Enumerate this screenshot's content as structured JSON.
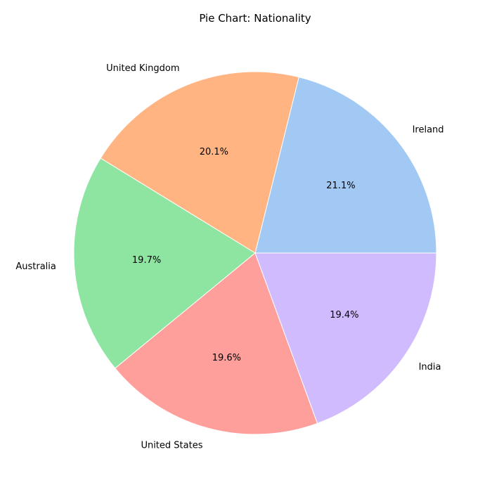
{
  "chart_data": {
    "type": "pie",
    "title": "Pie Chart: Nationality",
    "categories": [
      "Ireland",
      "United Kingdom",
      "Australia",
      "United States",
      "India"
    ],
    "values": [
      21.1,
      20.1,
      19.7,
      19.6,
      19.4
    ],
    "percent_labels": [
      "21.1%",
      "20.1%",
      "19.7%",
      "19.6%",
      "19.4%"
    ],
    "colors": [
      "#a1c9f4",
      "#ffb482",
      "#8de5a1",
      "#ff9f9b",
      "#d0bbff"
    ],
    "start_angle_deg": 0,
    "direction": "counterclockwise",
    "legend": "none"
  }
}
